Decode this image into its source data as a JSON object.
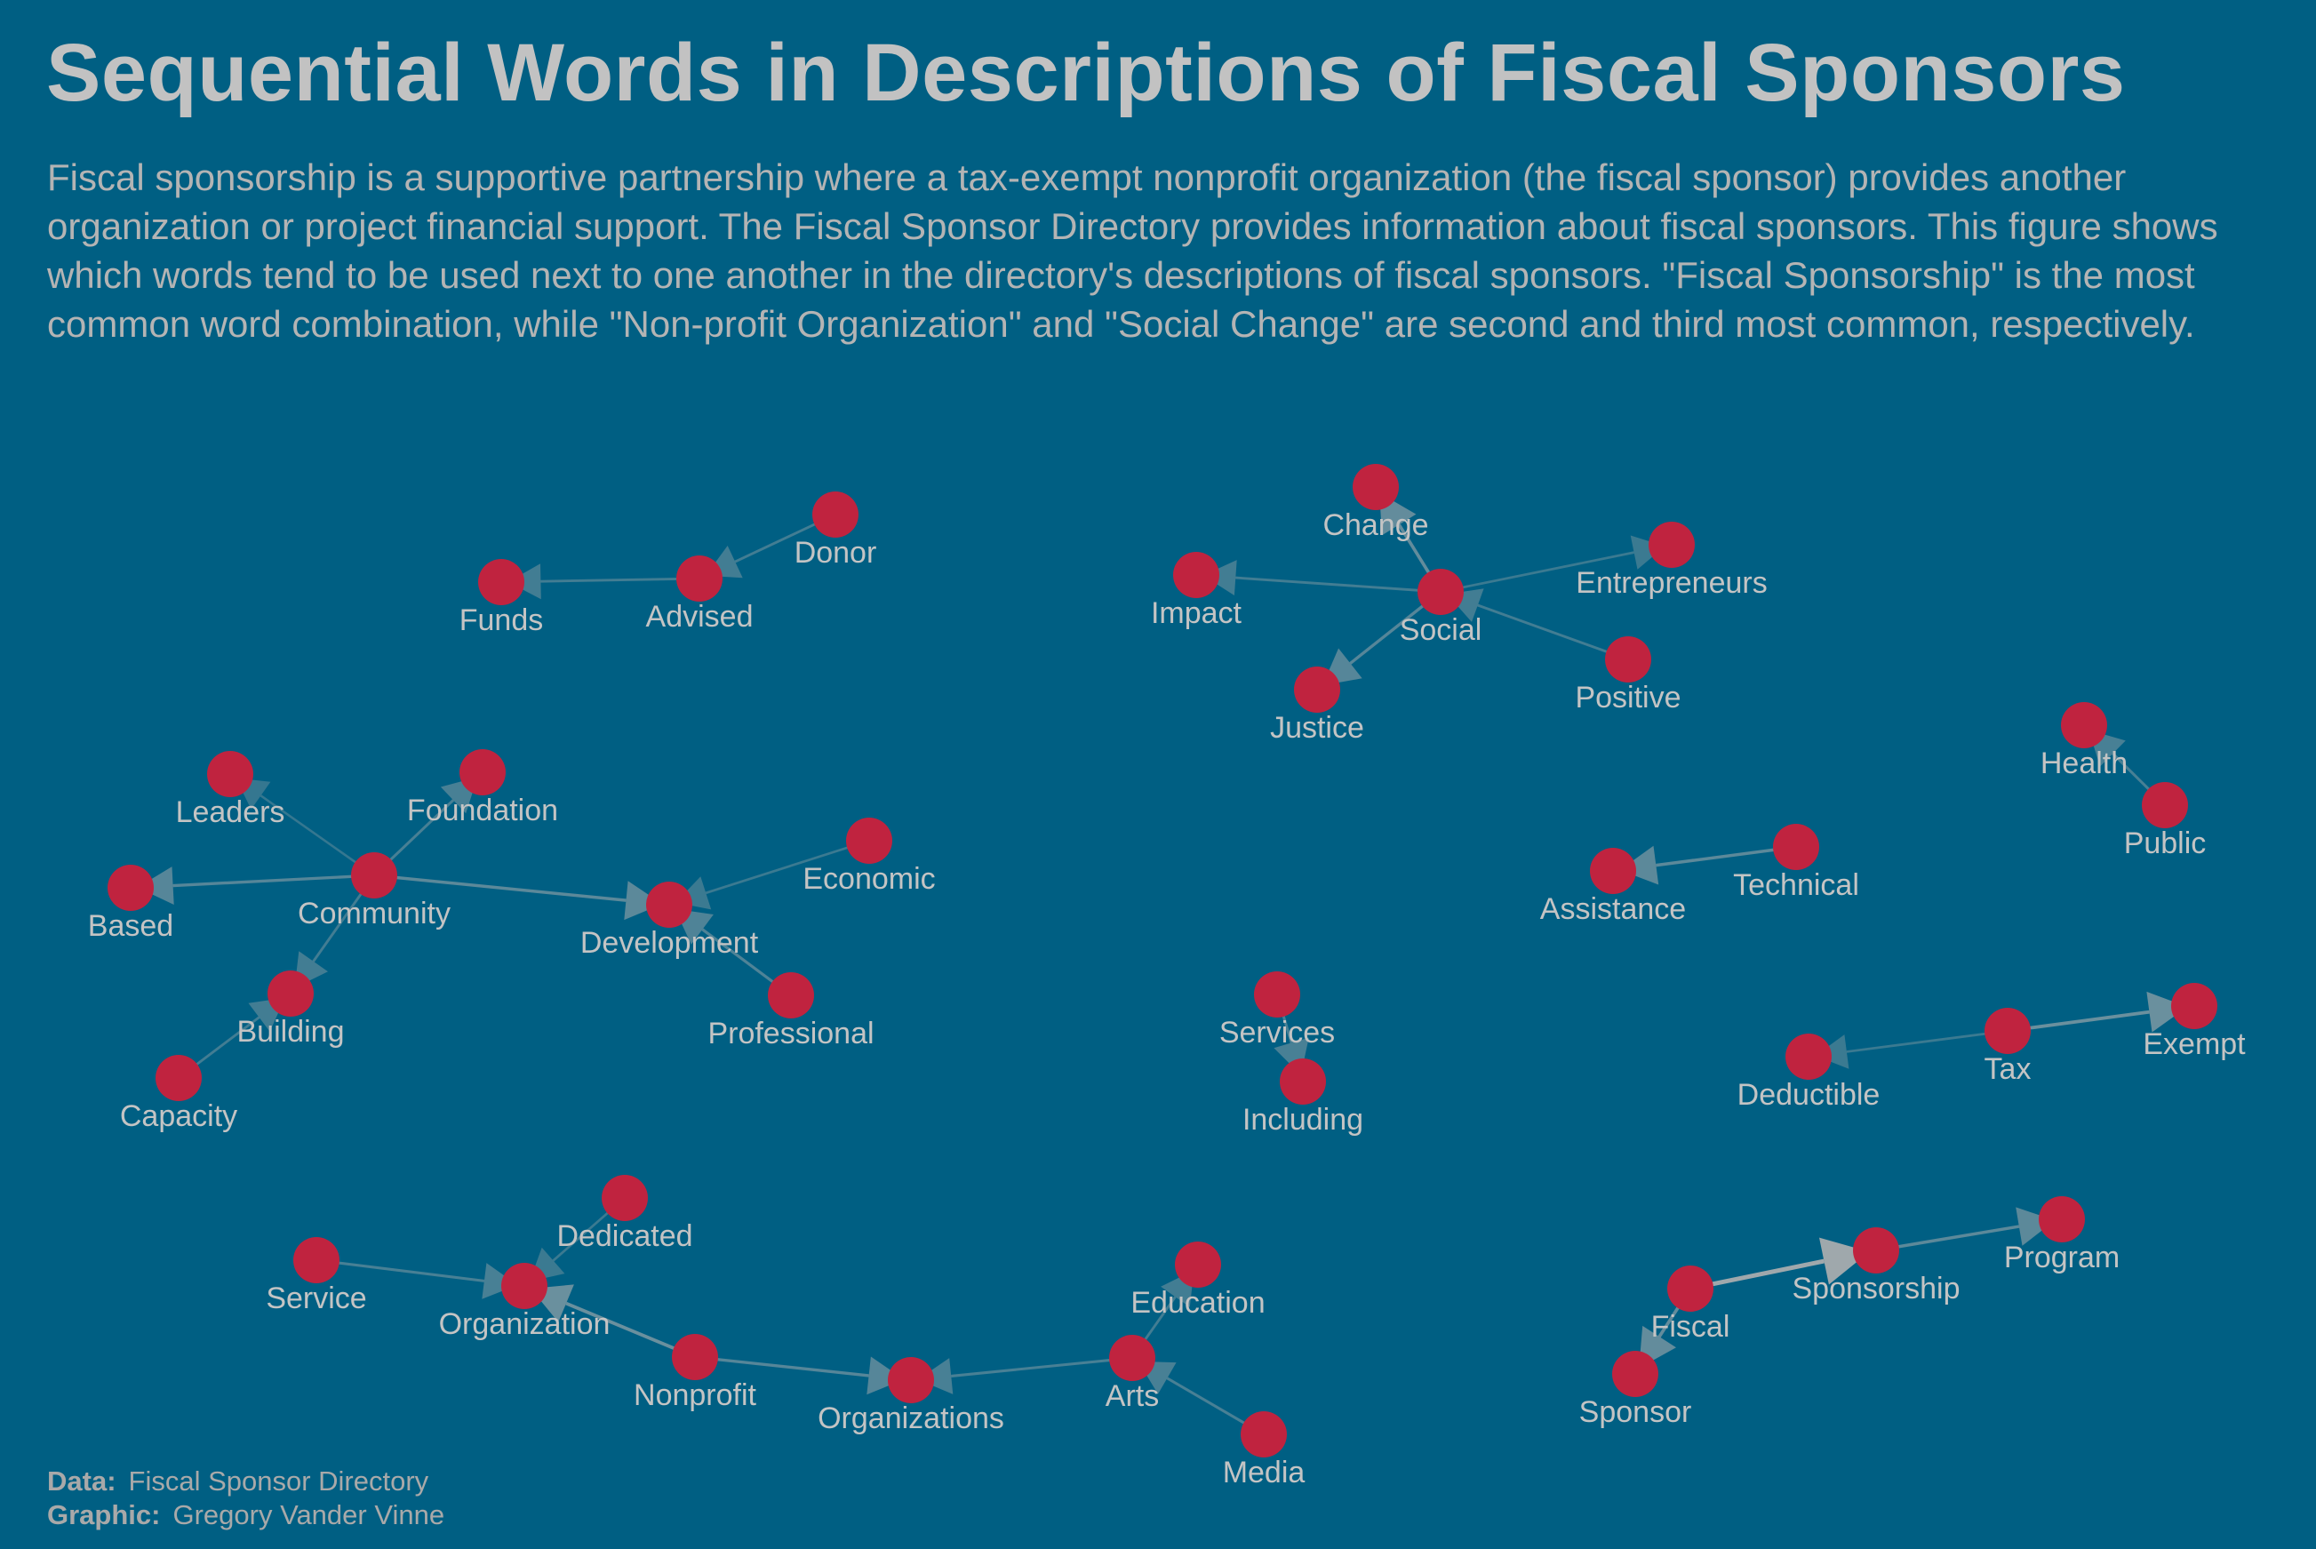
{
  "title": "Sequential Words in Descriptions of Fiscal Sponsors",
  "subtitle": "Fiscal sponsorship is a supportive partnership where a tax-exempt nonprofit organization (the fiscal sponsor) provides another organization or project financial support. The Fiscal Sponsor Directory provides information about fiscal sponsors. This figure shows which words tend to be used next to one another in the directory's descriptions of fiscal sponsors. \"Fiscal Sponsorship\" is the most common word combination, while \"Non-profit Organization\" and \"Social Change\" are second and third most common, respectively.",
  "caption": {
    "data_label": "Data:",
    "data_value": "Fiscal Sponsor Directory",
    "graphic_label": "Graphic:",
    "graphic_value": "Gregory Vander Vinne"
  },
  "colors": {
    "background": "#005f83",
    "node": "#c0233f",
    "edge": "#b0b0b0",
    "label": "#c4c4c4"
  },
  "nodes": [
    {
      "id": "donor",
      "label": "Donor"
    },
    {
      "id": "advised",
      "label": "Advised"
    },
    {
      "id": "funds",
      "label": "Funds"
    },
    {
      "id": "change",
      "label": "Change"
    },
    {
      "id": "impact",
      "label": "Impact"
    },
    {
      "id": "entrepreneurs",
      "label": "Entrepreneurs"
    },
    {
      "id": "social",
      "label": "Social"
    },
    {
      "id": "positive",
      "label": "Positive"
    },
    {
      "id": "justice",
      "label": "Justice"
    },
    {
      "id": "health",
      "label": "Health"
    },
    {
      "id": "public",
      "label": "Public"
    },
    {
      "id": "leaders",
      "label": "Leaders"
    },
    {
      "id": "foundation",
      "label": "Foundation"
    },
    {
      "id": "based",
      "label": "Based"
    },
    {
      "id": "community",
      "label": "Community"
    },
    {
      "id": "development",
      "label": "Development"
    },
    {
      "id": "economic",
      "label": "Economic"
    },
    {
      "id": "building",
      "label": "Building"
    },
    {
      "id": "professional",
      "label": "Professional"
    },
    {
      "id": "capacity",
      "label": "Capacity"
    },
    {
      "id": "technical",
      "label": "Technical"
    },
    {
      "id": "assistance",
      "label": "Assistance"
    },
    {
      "id": "services",
      "label": "Services"
    },
    {
      "id": "including",
      "label": "Including"
    },
    {
      "id": "exempt",
      "label": "Exempt"
    },
    {
      "id": "tax",
      "label": "Tax"
    },
    {
      "id": "deductible",
      "label": "Deductible"
    },
    {
      "id": "dedicated",
      "label": "Dedicated"
    },
    {
      "id": "service",
      "label": "Service"
    },
    {
      "id": "organization",
      "label": "Organization"
    },
    {
      "id": "nonprofit",
      "label": "Nonprofit"
    },
    {
      "id": "organizations",
      "label": "Organizations"
    },
    {
      "id": "education",
      "label": "Education"
    },
    {
      "id": "arts",
      "label": "Arts"
    },
    {
      "id": "media",
      "label": "Media"
    },
    {
      "id": "program",
      "label": "Program"
    },
    {
      "id": "sponsorship",
      "label": "Sponsorship"
    },
    {
      "id": "fiscal",
      "label": "Fiscal"
    },
    {
      "id": "sponsor",
      "label": "Sponsor"
    }
  ],
  "edges": [
    {
      "from": "donor",
      "to": "advised",
      "weight": 0.3
    },
    {
      "from": "advised",
      "to": "funds",
      "weight": 0.3
    },
    {
      "from": "social",
      "to": "change",
      "weight": 0.55
    },
    {
      "from": "social",
      "to": "impact",
      "weight": 0.3
    },
    {
      "from": "social",
      "to": "entrepreneurs",
      "weight": 0.25
    },
    {
      "from": "positive",
      "to": "social",
      "weight": 0.3
    },
    {
      "from": "social",
      "to": "justice",
      "weight": 0.45
    },
    {
      "from": "public",
      "to": "health",
      "weight": 0.35
    },
    {
      "from": "community",
      "to": "leaders",
      "weight": 0.2
    },
    {
      "from": "community",
      "to": "foundation",
      "weight": 0.35
    },
    {
      "from": "community",
      "to": "based",
      "weight": 0.45
    },
    {
      "from": "community",
      "to": "development",
      "weight": 0.5
    },
    {
      "from": "economic",
      "to": "development",
      "weight": 0.25
    },
    {
      "from": "professional",
      "to": "development",
      "weight": 0.4
    },
    {
      "from": "community",
      "to": "building",
      "weight": 0.3
    },
    {
      "from": "capacity",
      "to": "building",
      "weight": 0.3
    },
    {
      "from": "technical",
      "to": "assistance",
      "weight": 0.5
    },
    {
      "from": "services",
      "to": "including",
      "weight": 0.35
    },
    {
      "from": "tax",
      "to": "exempt",
      "weight": 0.6
    },
    {
      "from": "tax",
      "to": "deductible",
      "weight": 0.25
    },
    {
      "from": "service",
      "to": "organization",
      "weight": 0.35
    },
    {
      "from": "dedicated",
      "to": "organization",
      "weight": 0.25
    },
    {
      "from": "nonprofit",
      "to": "organization",
      "weight": 0.6
    },
    {
      "from": "nonprofit",
      "to": "organizations",
      "weight": 0.45
    },
    {
      "from": "arts",
      "to": "organizations",
      "weight": 0.35
    },
    {
      "from": "arts",
      "to": "education",
      "weight": 0.3
    },
    {
      "from": "media",
      "to": "arts",
      "weight": 0.35
    },
    {
      "from": "fiscal",
      "to": "sponsorship",
      "weight": 1.0
    },
    {
      "from": "sponsorship",
      "to": "program",
      "weight": 0.5
    },
    {
      "from": "fiscal",
      "to": "sponsor",
      "weight": 0.55
    }
  ]
}
